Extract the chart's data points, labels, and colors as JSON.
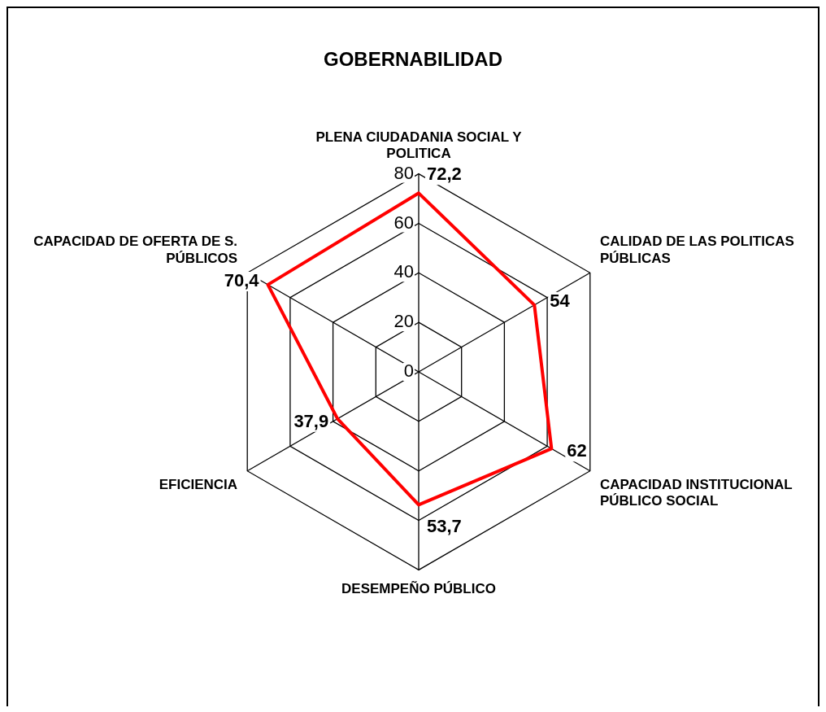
{
  "chart_data": {
    "type": "radar",
    "title": "GOBERNABILIDAD",
    "categories": [
      "PLENA CIUDADANIA SOCIAL Y POLITICA",
      "CALIDAD DE LAS POLITICAS PÚBLICAS",
      "CAPACIDAD INSTITUCIONAL PÚBLICO SOCIAL",
      "DESEMPEÑO PÚBLICO",
      "EFICIENCIA",
      "CAPACIDAD DE OFERTA DE S. PÚBLICOS"
    ],
    "series": [
      {
        "color": "#ff0000",
        "values": [
          72.2,
          54,
          62,
          53.7,
          37.9,
          70.4
        ],
        "value_labels": [
          "72,2",
          "54",
          "62",
          "53,7",
          "37,9",
          "70,4"
        ]
      }
    ],
    "ylim": [
      0,
      80
    ],
    "yticks": [
      0,
      20,
      40,
      60,
      80
    ],
    "grid": true,
    "legend": false,
    "marker": "none",
    "line_style": "solid"
  }
}
